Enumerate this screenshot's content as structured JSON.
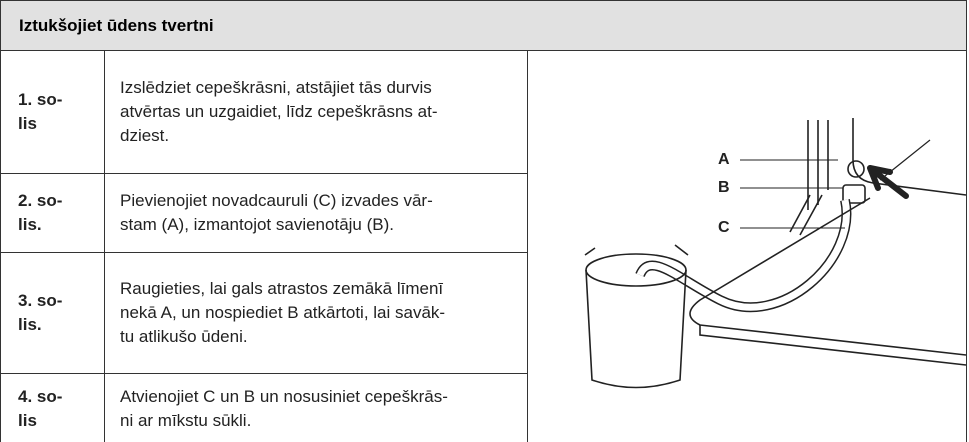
{
  "header": {
    "title": "Iztukšojiet ūdens tvertni"
  },
  "steps": [
    {
      "label": [
        "1. so-",
        "lis"
      ],
      "text": [
        "Izslēdziet cepeškrāsni, atstājiet tās durvis",
        "atvērtas un uzgaidiet, līdz cepeškrāsns at-",
        "dziest."
      ]
    },
    {
      "label": [
        "2. so-",
        "lis."
      ],
      "text": [
        "Pievienojiet novadcauruli (C) izvades vār-",
        "stam (A), izmantojot savienotāju (B)."
      ]
    },
    {
      "label": [
        "3. so-",
        "lis."
      ],
      "text": [
        "Raugieties, lai gals atrastos zemākā līmenī",
        "nekā A, un nospiediet B atkārtoti, lai savāk-",
        "tu atlikušo ūdeni."
      ]
    },
    {
      "label": [
        "4. so-",
        "lis"
      ],
      "text": [
        "Atvienojiet C un B un nosusiniet cepeškrās-",
        "ni ar mīkstu sūkli."
      ]
    }
  ],
  "figure": {
    "labels": [
      "A",
      "B",
      "C"
    ]
  }
}
